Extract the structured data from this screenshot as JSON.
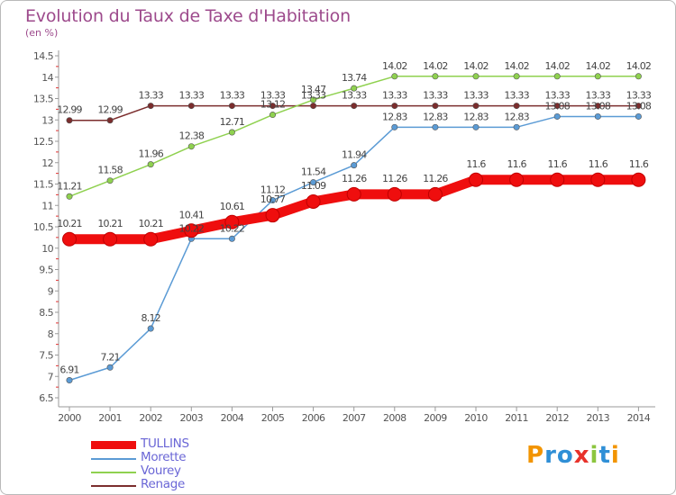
{
  "title": "Evolution du Taux de Taxe d'Habitation",
  "subtitle": "(en %)",
  "chart_data": {
    "type": "line",
    "title": "Evolution du Taux de Taxe d'Habitation",
    "ylabel": "(en %)",
    "x": [
      "2000",
      "2001",
      "2002",
      "2003",
      "2004",
      "2005",
      "2006",
      "2007",
      "2008",
      "2009",
      "2010",
      "2011",
      "2012",
      "2013",
      "2014"
    ],
    "ylim": [
      6.5,
      14.5
    ],
    "yticks": [
      "6.5",
      "7",
      "7.5",
      "8",
      "8.5",
      "9",
      "9.5",
      "10",
      "10.5",
      "11",
      "11.5",
      "12",
      "12.5",
      "13",
      "13.5",
      "14",
      "14.5"
    ],
    "grid": false,
    "legend": "bottom-left",
    "series": [
      {
        "name": "TULLINS",
        "color": "#ef0e0e",
        "values": [
          10.21,
          10.21,
          10.21,
          10.41,
          10.61,
          10.77,
          11.09,
          11.26,
          11.26,
          11.26,
          11.6,
          11.6,
          11.6,
          11.6,
          11.6
        ],
        "labels": [
          "10.21",
          "10.21",
          "10.21",
          "10.41",
          "10.61",
          "10.77",
          "11.09",
          "11.26",
          "11.26",
          "11.26",
          "11.6",
          "11.6",
          "11.6",
          "11.6",
          "11.6"
        ]
      },
      {
        "name": "Morette",
        "color": "#5b9bd5",
        "values": [
          6.91,
          7.21,
          8.12,
          10.22,
          10.22,
          11.12,
          11.54,
          11.94,
          12.83,
          12.83,
          12.83,
          12.83,
          13.08,
          13.08,
          13.08
        ],
        "labels": [
          "6.91",
          "7.21",
          "8.12",
          "10.22",
          "10.22",
          "11.12",
          "11.54",
          "11.94",
          "12.83",
          "12.83",
          "12.83",
          "12.83",
          "13.08",
          "13.08",
          "13.08"
        ]
      },
      {
        "name": "Vourey",
        "color": "#8fd14f",
        "values": [
          11.21,
          11.58,
          11.96,
          12.38,
          12.71,
          13.12,
          13.47,
          13.74,
          14.02,
          14.02,
          14.02,
          14.02,
          14.02,
          14.02,
          14.02
        ],
        "labels": [
          "11.21",
          "11.58",
          "11.96",
          "12.38",
          "12.71",
          "13.12",
          "13.47",
          "13.74",
          "14.02",
          "14.02",
          "14.02",
          "14.02",
          "14.02",
          "14.02",
          "14.02"
        ]
      },
      {
        "name": "Renage",
        "color": "#7b2d2d",
        "values": [
          12.99,
          12.99,
          13.33,
          13.33,
          13.33,
          13.33,
          13.33,
          13.33,
          13.33,
          13.33,
          13.33,
          13.33,
          13.33,
          13.33,
          13.33
        ],
        "labels": [
          "12.99",
          "12.99",
          "13.33",
          "13.33",
          "13.33",
          "13.33",
          "13.33",
          "13.33",
          "13.33",
          "13.33",
          "13.33",
          "13.33",
          "13.33",
          "13.33",
          "13.33"
        ]
      }
    ]
  },
  "legend": {
    "items": [
      {
        "label": "TULLINS",
        "color": "#ef0e0e"
      },
      {
        "label": "Morette",
        "color": "#5b9bd5"
      },
      {
        "label": "Vourey",
        "color": "#8fd14f"
      },
      {
        "label": "Renage",
        "color": "#7b2d2d"
      }
    ]
  },
  "logo": {
    "text": "Proxiti",
    "letters": [
      "P",
      "r",
      "o",
      "x",
      "i",
      "t",
      "i"
    ],
    "colors": [
      "#f29400",
      "#2f8fd6",
      "#2f8fd6",
      "#e8322b",
      "#8cc63f",
      "#2f8fd6",
      "#f29400"
    ]
  }
}
